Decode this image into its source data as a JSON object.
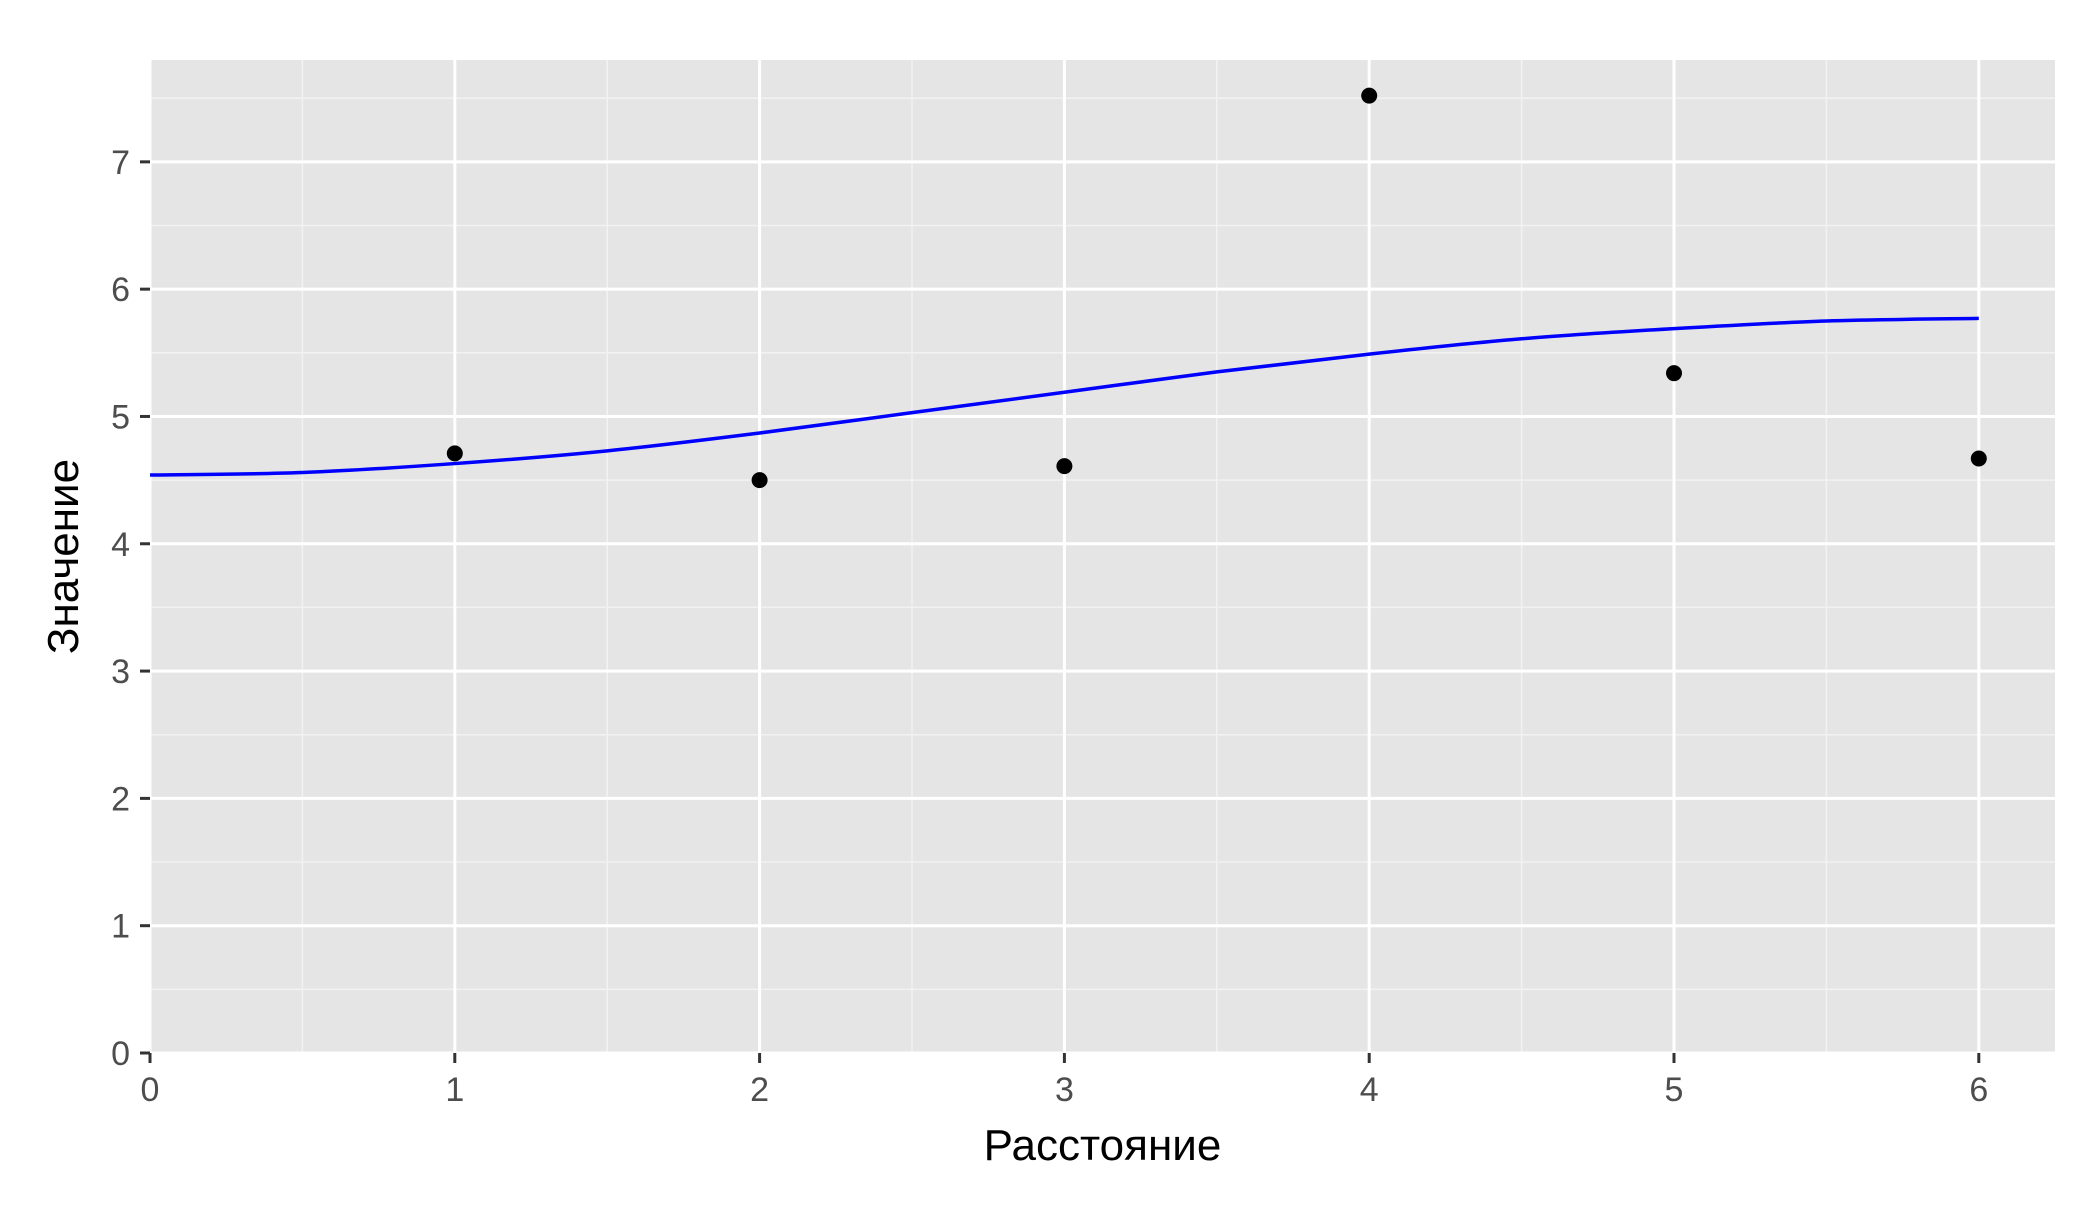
{
  "colors": {
    "panel_background": "#e5e5e5",
    "grid_major": "#ffffff",
    "grid_minor": "#f2f2f2",
    "point": "#000000",
    "curve": "#0000ff",
    "tick_text": "#4d4d4d"
  },
  "chart_data": {
    "type": "scatter",
    "title": "",
    "xlabel": "Расстояние",
    "ylabel": "Значение",
    "xlim": [
      0,
      6.25
    ],
    "ylim": [
      0,
      7.8
    ],
    "x_ticks": [
      0,
      1,
      2,
      3,
      4,
      5,
      6
    ],
    "y_ticks": [
      0,
      1,
      2,
      3,
      4,
      5,
      6,
      7
    ],
    "x_tick_labels": [
      "0",
      "1",
      "2",
      "3",
      "4",
      "5",
      "6"
    ],
    "y_tick_labels": [
      "0",
      "1",
      "2",
      "3",
      "4",
      "5",
      "6",
      "7"
    ],
    "grid": true,
    "legend": "none",
    "points": {
      "x": [
        1,
        2,
        3,
        4,
        5,
        6
      ],
      "y": [
        4.71,
        4.5,
        4.61,
        7.52,
        5.34,
        4.67
      ]
    },
    "fitted_curve": {
      "x": [
        0,
        0.5,
        1,
        1.5,
        2,
        2.5,
        3,
        3.5,
        4,
        4.5,
        5,
        5.5,
        6
      ],
      "y": [
        4.54,
        4.56,
        4.63,
        4.73,
        4.87,
        5.03,
        5.19,
        5.35,
        5.49,
        5.61,
        5.69,
        5.75,
        5.77
      ]
    }
  }
}
